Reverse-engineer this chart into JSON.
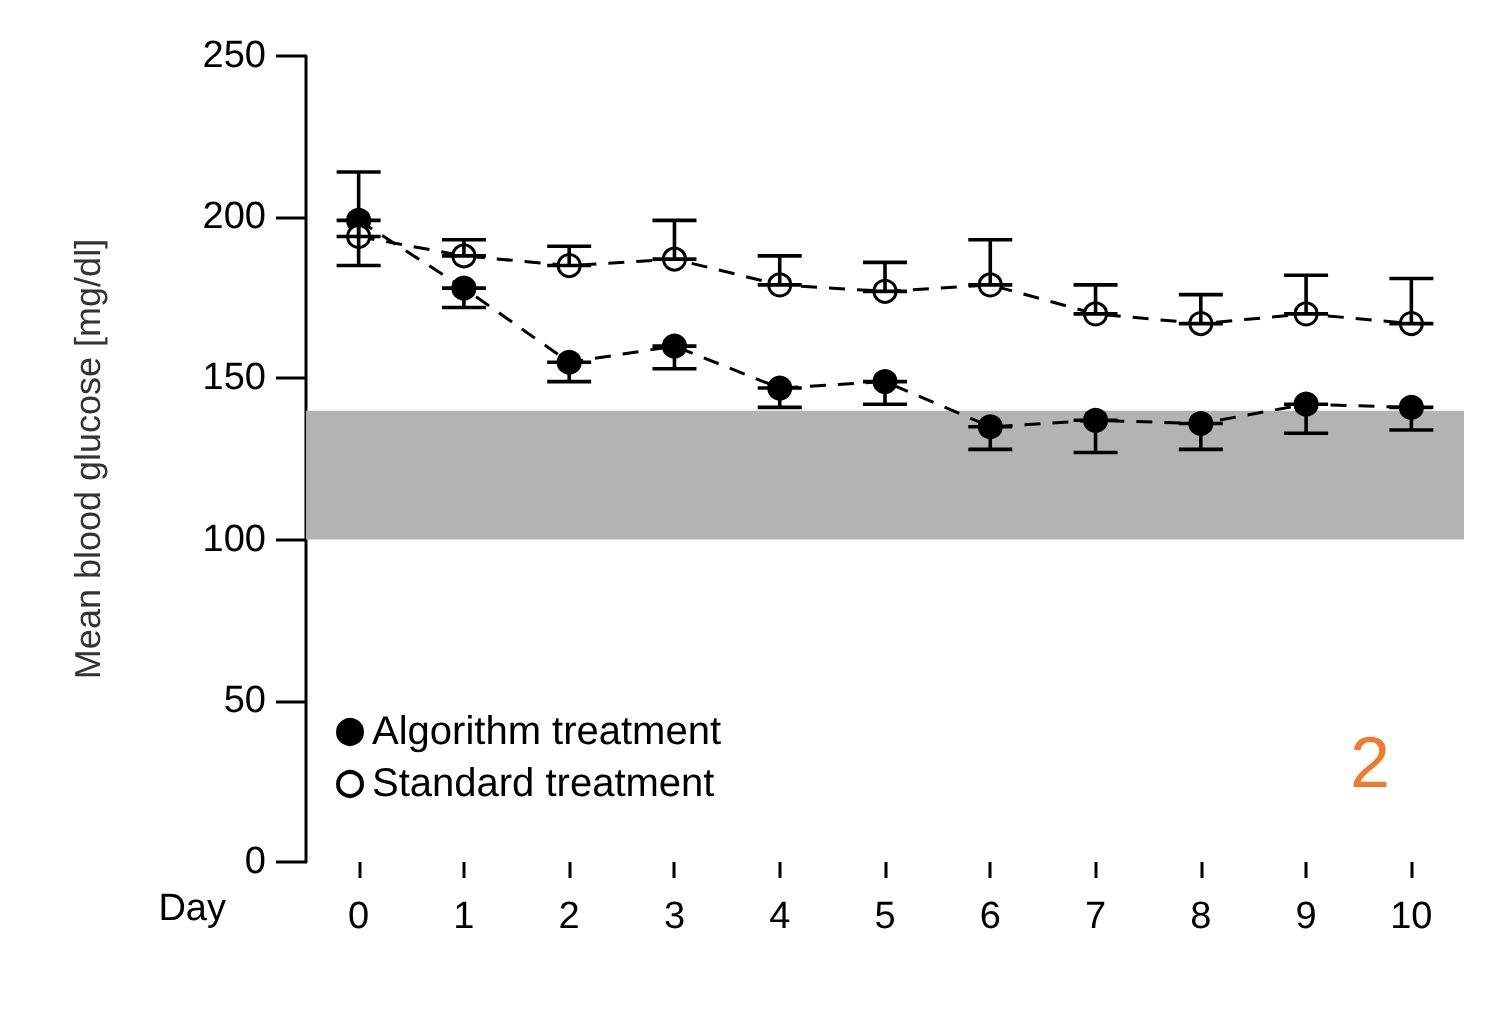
{
  "chart_data": {
    "type": "line",
    "xlabel": "Day",
    "ylabel": "Mean blood glucose [mg/dl]",
    "categories": [
      "0",
      "1",
      "2",
      "3",
      "4",
      "5",
      "6",
      "7",
      "8",
      "9",
      "10"
    ],
    "series": [
      {
        "name": "Algorithm treatment",
        "color": "#000000",
        "values": [
          199,
          178,
          155,
          160,
          147,
          149,
          135,
          137,
          136,
          142,
          141
        ],
        "errors": [
          [
            185,
            199
          ],
          [
            172,
            178
          ],
          [
            149,
            155
          ],
          [
            153,
            160
          ],
          [
            141,
            147
          ],
          [
            142,
            149
          ],
          [
            128,
            135
          ],
          [
            127,
            137
          ],
          [
            128,
            136
          ],
          [
            133,
            142
          ],
          [
            134,
            141
          ]
        ]
      },
      {
        "name": "Standard treatment",
        "color": "#000000",
        "values": [
          194,
          188,
          185,
          187,
          179,
          177,
          179,
          170,
          167,
          170,
          167
        ],
        "errors": [
          [
            194,
            214
          ],
          [
            188,
            193
          ],
          [
            185,
            191
          ],
          [
            187,
            199
          ],
          [
            179,
            188
          ],
          [
            177,
            186
          ],
          [
            179,
            193
          ],
          [
            170,
            179
          ],
          [
            167,
            176
          ],
          [
            170,
            182
          ],
          [
            167,
            181
          ]
        ]
      }
    ],
    "ylim": [
      0,
      250
    ],
    "yticks": [
      0,
      50,
      100,
      150,
      200,
      250
    ],
    "bands": [
      {
        "axis": "y",
        "from": 100,
        "to": 140,
        "color": "#b3b3b3"
      }
    ],
    "legend": "bottom left",
    "marker": "circle",
    "line_style": "dashed",
    "grid": false,
    "annotations": [
      "2"
    ]
  }
}
